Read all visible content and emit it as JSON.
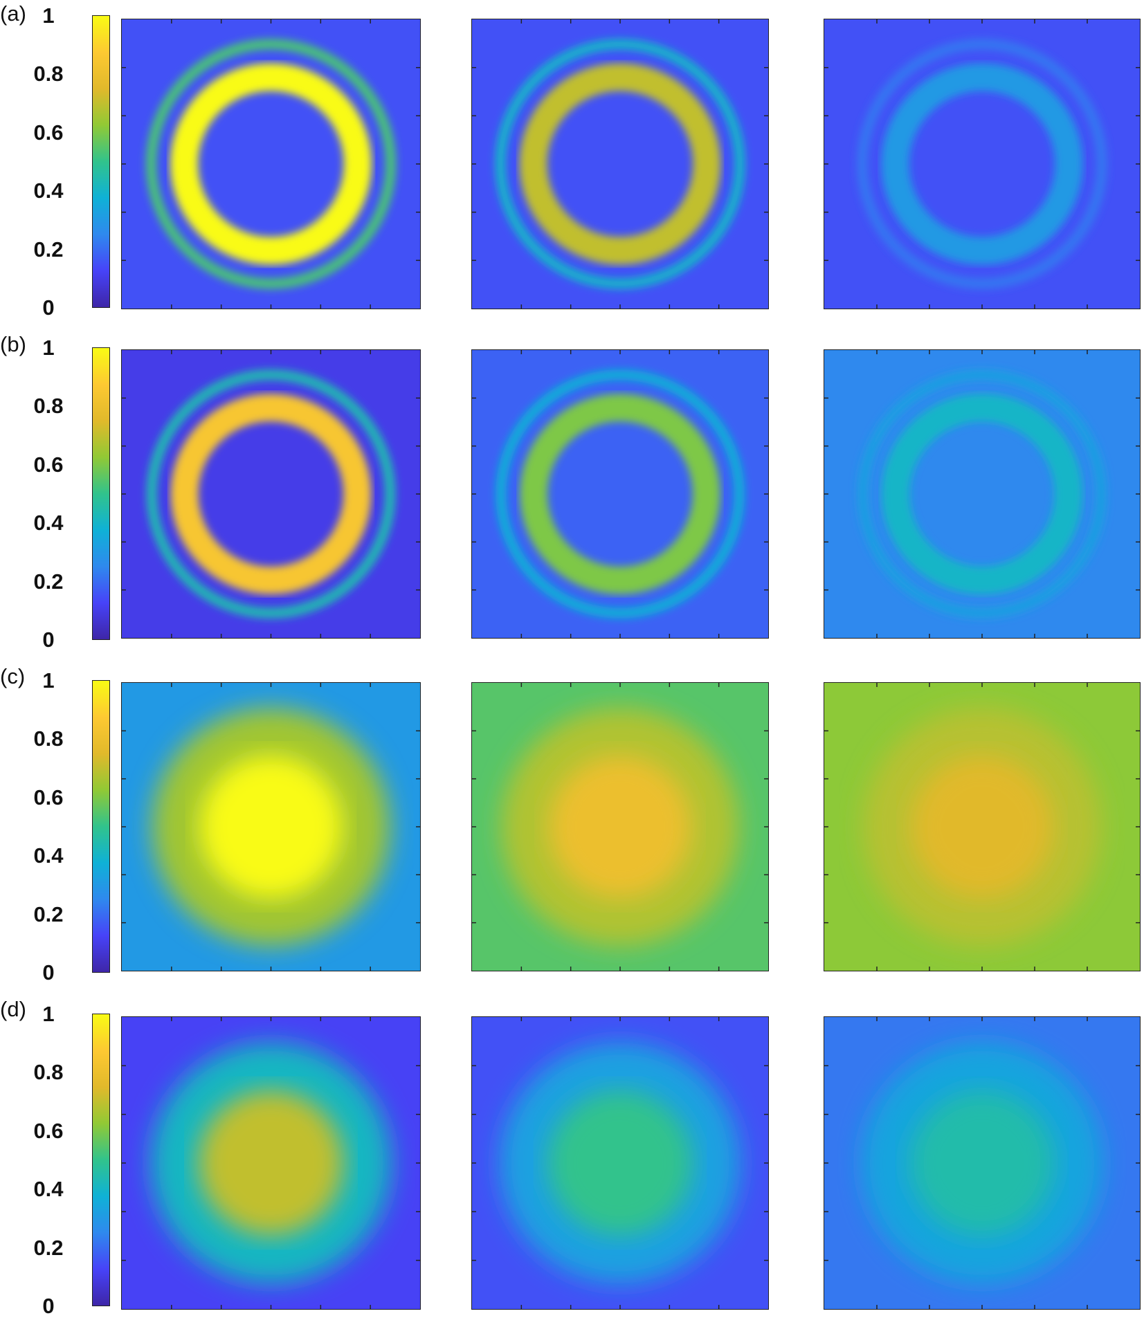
{
  "figure": {
    "panel_labels": [
      "(a)",
      "(b)",
      "(c)",
      "(d)"
    ],
    "colorbar_ticks": [
      "1",
      "0.8",
      "0.6",
      "0.4",
      "0.2",
      "0"
    ],
    "colormap": [
      "#3e26a8",
      "#4743f8",
      "#2f89ee",
      "#0fb1d6",
      "#31c38c",
      "#91c935",
      "#e1b92b",
      "#fdc932",
      "#f9fb14"
    ],
    "colorbar_range": [
      0,
      1
    ]
  },
  "chart_data": {
    "type": "heatmap",
    "title": "",
    "rows": [
      {
        "label": "(a)",
        "maps": [
          {
            "pattern": "ring",
            "peak": 1.0,
            "background": 0.15
          },
          {
            "pattern": "ring",
            "peak": 0.7,
            "background": 0.15
          },
          {
            "pattern": "ring",
            "peak": 0.3,
            "background": 0.15
          }
        ]
      },
      {
        "label": "(b)",
        "maps": [
          {
            "pattern": "ring",
            "peak": 0.85,
            "background": 0.1
          },
          {
            "pattern": "ring",
            "peak": 0.6,
            "background": 0.18
          },
          {
            "pattern": "ring",
            "peak": 0.4,
            "background": 0.25
          }
        ]
      },
      {
        "label": "(c)",
        "maps": [
          {
            "pattern": "spot",
            "peak": 1.0,
            "background": 0.3
          },
          {
            "pattern": "spot",
            "peak": 0.8,
            "background": 0.55
          },
          {
            "pattern": "spot",
            "peak": 0.75,
            "background": 0.62
          }
        ]
      },
      {
        "label": "(d)",
        "maps": [
          {
            "pattern": "spot",
            "peak": 0.7,
            "background": 0.12
          },
          {
            "pattern": "spot",
            "peak": 0.5,
            "background": 0.15
          },
          {
            "pattern": "spot",
            "peak": 0.45,
            "background": 0.22
          }
        ]
      }
    ]
  }
}
